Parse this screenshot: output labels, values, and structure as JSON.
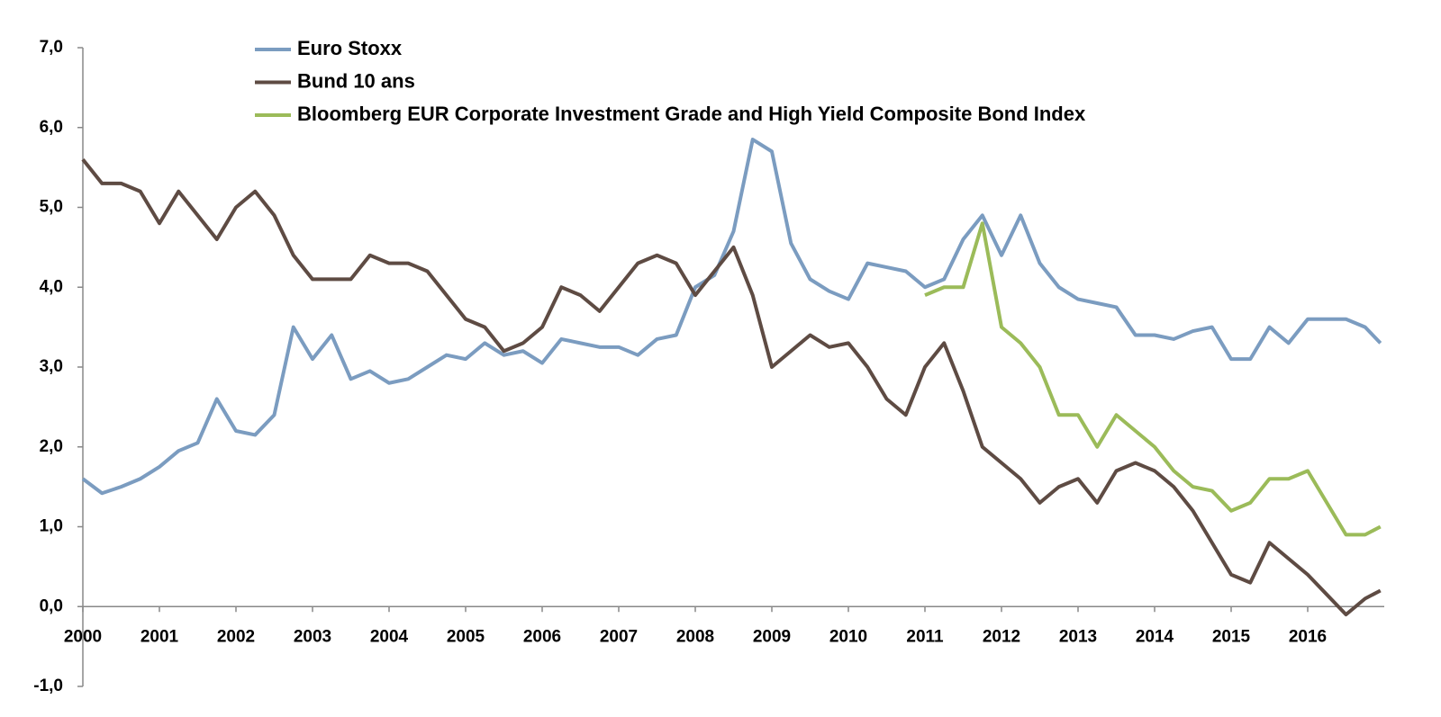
{
  "chart_data": {
    "type": "line",
    "x": [
      2000,
      2000.25,
      2000.5,
      2000.75,
      2001,
      2001.25,
      2001.5,
      2001.75,
      2002,
      2002.25,
      2002.5,
      2002.75,
      2003,
      2003.25,
      2003.5,
      2003.75,
      2004,
      2004.25,
      2004.5,
      2004.75,
      2005,
      2005.25,
      2005.5,
      2005.75,
      2006,
      2006.25,
      2006.5,
      2006.75,
      2007,
      2007.25,
      2007.5,
      2007.75,
      2008,
      2008.25,
      2008.5,
      2008.75,
      2009,
      2009.25,
      2009.5,
      2009.75,
      2010,
      2010.25,
      2010.5,
      2010.75,
      2011,
      2011.25,
      2011.5,
      2011.75,
      2012,
      2012.25,
      2012.5,
      2012.75,
      2013,
      2013.25,
      2013.5,
      2013.75,
      2014,
      2014.25,
      2014.5,
      2014.75,
      2015,
      2015.25,
      2015.5,
      2015.75,
      2016,
      2016.25,
      2016.5,
      2016.75,
      2016.95
    ],
    "series": [
      {
        "name": "Euro Stoxx",
        "color": "#7b9cc0",
        "values": [
          1.6,
          1.42,
          1.5,
          1.6,
          1.75,
          1.95,
          2.05,
          2.6,
          2.2,
          2.15,
          2.4,
          3.5,
          3.1,
          3.4,
          2.85,
          2.95,
          2.8,
          2.85,
          3.0,
          3.15,
          3.1,
          3.3,
          3.15,
          3.2,
          3.05,
          3.35,
          3.3,
          3.25,
          3.25,
          3.15,
          3.35,
          3.4,
          4.0,
          4.15,
          4.7,
          5.85,
          5.7,
          4.55,
          4.1,
          3.95,
          3.85,
          4.3,
          4.25,
          4.2,
          4.0,
          4.1,
          4.6,
          4.9,
          4.4,
          4.9,
          4.3,
          4.0,
          3.85,
          3.8,
          3.75,
          3.4,
          3.4,
          3.35,
          3.45,
          3.5,
          3.1,
          3.1,
          3.5,
          3.3,
          3.6,
          3.6,
          3.6,
          3.5,
          3.3
        ]
      },
      {
        "name": "Bund 10 ans",
        "color": "#5e4b43",
        "values": [
          5.6,
          5.3,
          5.3,
          5.2,
          4.8,
          5.2,
          4.9,
          4.6,
          5.0,
          5.2,
          4.9,
          4.4,
          4.1,
          4.1,
          4.1,
          4.4,
          4.3,
          4.3,
          4.2,
          3.9,
          3.6,
          3.5,
          3.2,
          3.3,
          3.5,
          4.0,
          3.9,
          3.7,
          4.0,
          4.3,
          4.4,
          4.3,
          3.9,
          4.2,
          4.5,
          3.9,
          3.0,
          3.2,
          3.4,
          3.25,
          3.3,
          3.0,
          2.6,
          2.4,
          3.0,
          3.3,
          2.7,
          2.0,
          1.8,
          1.6,
          1.3,
          1.5,
          1.6,
          1.3,
          1.7,
          1.8,
          1.7,
          1.5,
          1.2,
          0.8,
          0.4,
          0.3,
          0.8,
          0.6,
          0.4,
          0.15,
          -0.1,
          0.1,
          0.2
        ]
      },
      {
        "name": "Bloomberg EUR Corporate Investment Grade and High Yield Composite Bond Index",
        "color": "#9bbb59",
        "values": [
          null,
          null,
          null,
          null,
          null,
          null,
          null,
          null,
          null,
          null,
          null,
          null,
          null,
          null,
          null,
          null,
          null,
          null,
          null,
          null,
          null,
          null,
          null,
          null,
          null,
          null,
          null,
          null,
          null,
          null,
          null,
          null,
          null,
          null,
          null,
          null,
          null,
          null,
          null,
          null,
          null,
          null,
          null,
          null,
          3.9,
          4.0,
          4.0,
          4.8,
          3.5,
          3.3,
          3.0,
          2.4,
          2.4,
          2.0,
          2.4,
          2.2,
          2.0,
          1.7,
          1.5,
          1.45,
          1.2,
          1.3,
          1.6,
          1.6,
          1.7,
          1.3,
          0.9,
          0.9,
          1.0
        ]
      }
    ],
    "xlim": [
      2000,
      2017
    ],
    "xticks": [
      2000,
      2001,
      2002,
      2003,
      2004,
      2005,
      2006,
      2007,
      2008,
      2009,
      2010,
      2011,
      2012,
      2013,
      2014,
      2015,
      2016
    ],
    "ylim": [
      -1,
      7
    ],
    "yticks": [
      {
        "value": -1,
        "label": "-1,0"
      },
      {
        "value": 0,
        "label": "0,0"
      },
      {
        "value": 1,
        "label": "1,0"
      },
      {
        "value": 2,
        "label": "2,0"
      },
      {
        "value": 3,
        "label": "3,0"
      },
      {
        "value": 4,
        "label": "4,0"
      },
      {
        "value": 5,
        "label": "5,0"
      },
      {
        "value": 6,
        "label": "6,0"
      },
      {
        "value": 7,
        "label": "7,0"
      }
    ],
    "grid": false,
    "legend": "top"
  }
}
